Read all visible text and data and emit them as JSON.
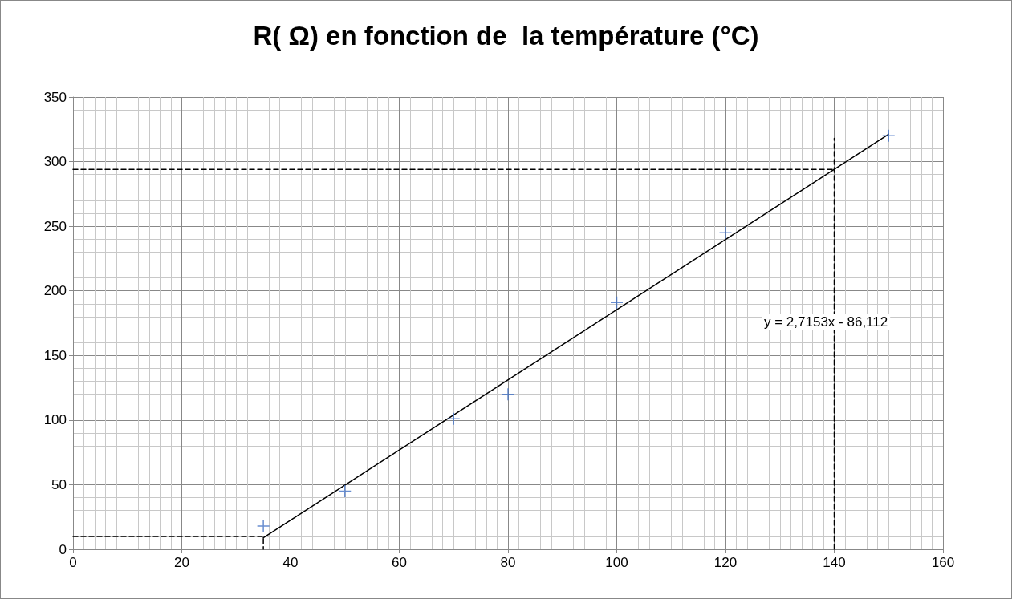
{
  "chart_data": {
    "type": "scatter",
    "title": "R( Ω) en fonction de  la température (°C)",
    "xlim": [
      0,
      160
    ],
    "xticks": [
      0,
      20,
      40,
      60,
      80,
      100,
      120,
      140,
      160
    ],
    "ylim": [
      0,
      350
    ],
    "yticks": [
      0,
      50,
      100,
      150,
      200,
      250,
      300,
      350
    ],
    "grid": true,
    "annotations": [
      "y = 2,7153x - 86,112"
    ],
    "series": [
      {
        "color": "#4472c4",
        "marker": "cross",
        "x": [
          35,
          50,
          70,
          80,
          100,
          120,
          150
        ],
        "values": [
          18,
          45,
          101,
          120,
          191,
          245,
          320
        ]
      },
      {
        "type": "line",
        "color": "#000000",
        "marker": "none",
        "line_style": "solid",
        "x": [
          35,
          150
        ],
        "values": [
          8.9,
          321.2
        ]
      },
      {
        "type": "line",
        "color": "#000000",
        "marker": "none",
        "line_style": "dashed",
        "x": [
          0,
          35,
          35
        ],
        "values": [
          10,
          10,
          0
        ]
      },
      {
        "type": "line",
        "color": "#000000",
        "marker": "none",
        "line_style": "dashed",
        "x": [
          0,
          140
        ],
        "values": [
          294,
          294
        ]
      },
      {
        "type": "line",
        "color": "#000000",
        "marker": "none",
        "line_style": "dashed",
        "x": [
          140,
          140
        ],
        "values": [
          0,
          318
        ]
      }
    ]
  }
}
